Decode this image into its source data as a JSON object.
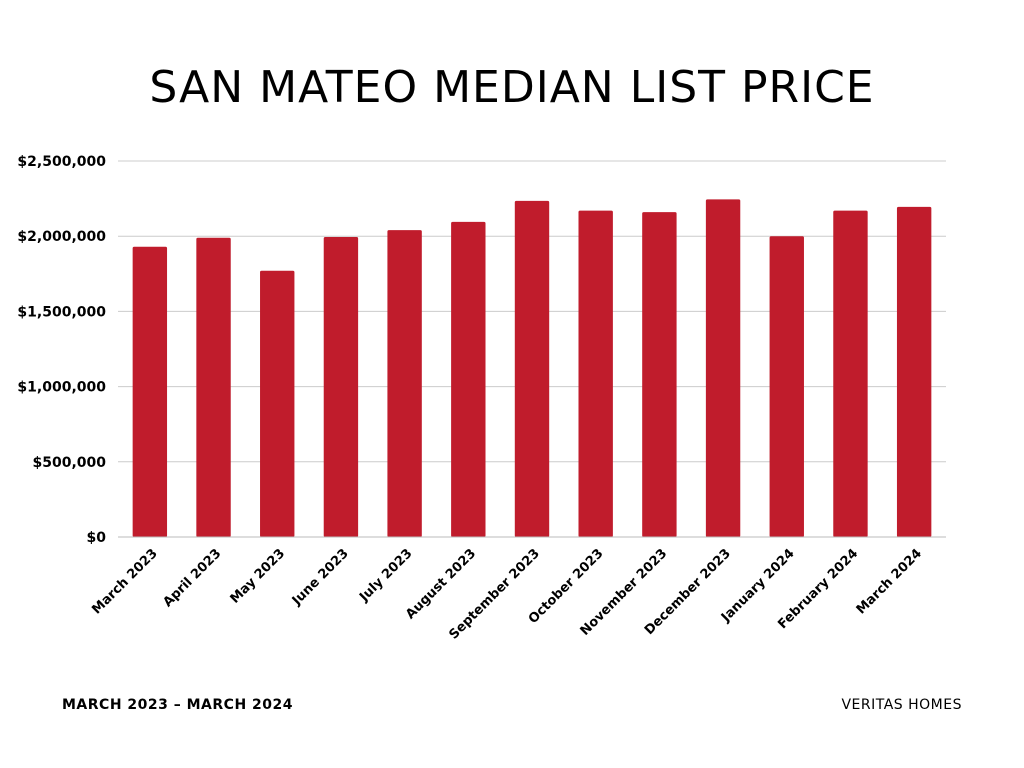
{
  "title": "SAN MATEO MEDIAN LIST PRICE",
  "footer": {
    "left": "MARCH 2023 – MARCH 2024",
    "right": "VERITAS HOMES"
  },
  "colors": {
    "bar": "#c01c2c",
    "grid": "#cccccc",
    "text": "#000000"
  },
  "chart_data": {
    "type": "bar",
    "title": "SAN MATEO MEDIAN LIST PRICE",
    "xlabel": "",
    "ylabel": "",
    "categories": [
      "March 2023",
      "April 2023",
      "May 2023",
      "June 2023",
      "July 2023",
      "August 2023",
      "September 2023",
      "October 2023",
      "November 2023",
      "December 2023",
      "January 2024",
      "February 2024",
      "March 2024"
    ],
    "values": [
      1930000,
      1990000,
      1770000,
      1995000,
      2040000,
      2095000,
      2235000,
      2170000,
      2160000,
      2245000,
      2000000,
      2170000,
      2195000
    ],
    "ylim": [
      0,
      2500000
    ],
    "yticks": [
      0,
      500000,
      1000000,
      1500000,
      2000000,
      2500000
    ],
    "ytick_labels": [
      "$0",
      "$500,000",
      "$1,000,000",
      "$1,500,000",
      "$2,000,000",
      "$2,500,000"
    ],
    "grid": true,
    "legend": "none"
  }
}
